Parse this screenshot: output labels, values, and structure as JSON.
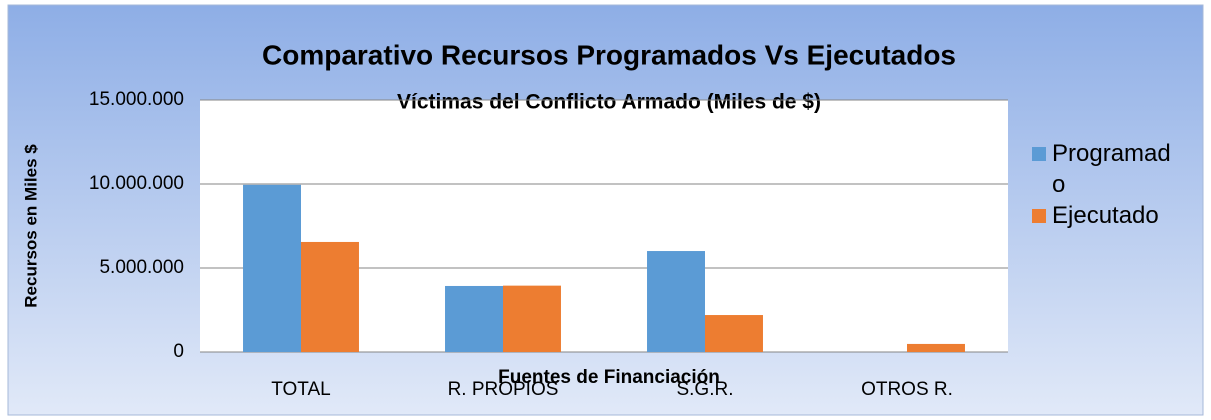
{
  "chart_data": {
    "type": "bar",
    "title": "Comparativo Recursos Programados Vs Ejecutados",
    "subtitle": "Víctimas del Conflicto Armado (Miles de $)",
    "y_label": "Recursos en Miles $",
    "x_label": "Fuentes de Financiación",
    "categories": [
      "TOTAL",
      "R. PROPIOS",
      "S.G.R.",
      "OTROS R."
    ],
    "series": [
      {
        "name": "Programado",
        "color": "#5b9bd5",
        "values": [
          9950000,
          3930000,
          6010000,
          0
        ]
      },
      {
        "name": "Ejecutado",
        "color": "#ed7d31",
        "values": [
          6550000,
          3950000,
          2200000,
          480000
        ]
      }
    ],
    "ylim": [
      0,
      15000000
    ],
    "yticks": [
      0,
      {
        "value": 5000000,
        "label": "5.000.000"
      },
      {
        "value": 10000000,
        "label": "10.000.000"
      },
      {
        "value": 15000000,
        "label": "15.000.000"
      }
    ],
    "grid": true,
    "legend": "right"
  }
}
